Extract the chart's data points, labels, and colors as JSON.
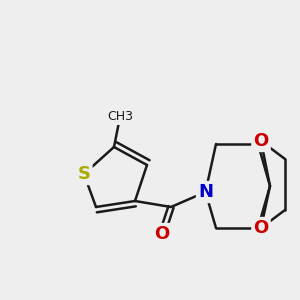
{
  "bg_color": "#eeeeee",
  "bond_color": "#1a1a1a",
  "bond_width": 1.8,
  "atom_S": {
    "symbol": "S",
    "color": "#aaaa00",
    "fontsize": 13,
    "fontweight": "bold"
  },
  "atom_N": {
    "symbol": "N",
    "color": "#0000cc",
    "fontsize": 13,
    "fontweight": "bold"
  },
  "atom_O_carbonyl": {
    "symbol": "O",
    "color": "#cc0000",
    "fontsize": 13,
    "fontweight": "bold"
  },
  "atom_O1": {
    "symbol": "O",
    "color": "#cc0000",
    "fontsize": 13,
    "fontweight": "bold"
  },
  "atom_O2": {
    "symbol": "O",
    "color": "#cc0000",
    "fontsize": 13,
    "fontweight": "bold"
  },
  "atom_CH3": {
    "symbol": "CH3",
    "color": "#1a1a1a",
    "fontsize": 9
  }
}
